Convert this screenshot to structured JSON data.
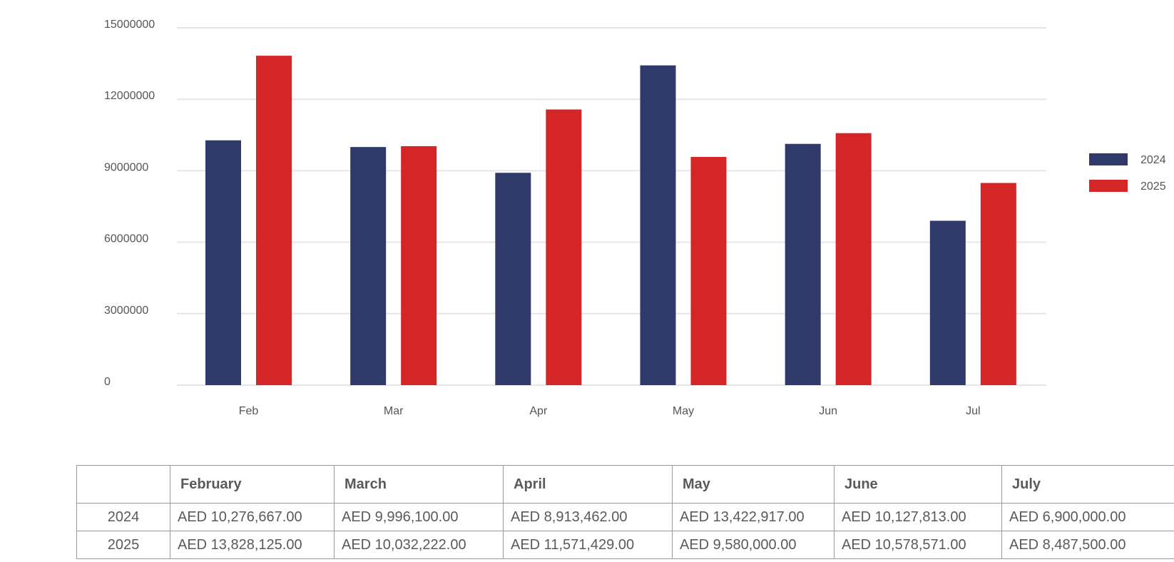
{
  "chart_data": {
    "type": "bar",
    "categories": [
      "Feb",
      "Mar",
      "Apr",
      "May",
      "Jun",
      "Jul"
    ],
    "series": [
      {
        "name": "2024",
        "color": "#2f3a6b",
        "values": [
          10276667,
          9996100,
          8913462,
          13422917,
          10127813,
          6900000
        ]
      },
      {
        "name": "2025",
        "color": "#d42626",
        "values": [
          13828125,
          10032222,
          11571429,
          9580000,
          10578571,
          8487500
        ]
      }
    ],
    "ylim": [
      0,
      15000000
    ],
    "yticks": [
      0,
      3000000,
      6000000,
      9000000,
      12000000,
      15000000
    ],
    "ytick_labels": [
      "0",
      "3000000",
      "6000000",
      "9000000",
      "12000000",
      "15000000"
    ],
    "grid": true,
    "legend": "right",
    "title": "",
    "xlabel": "",
    "ylabel": ""
  },
  "table": {
    "header": [
      "",
      "February",
      "March",
      "April",
      "May",
      "June",
      "July"
    ],
    "rows": [
      {
        "label": "2024",
        "cells": [
          "AED 10,276,667.00",
          "AED 9,996,100.00",
          "AED 8,913,462.00",
          "AED 13,422,917.00",
          "AED 10,127,813.00",
          "AED 6,900,000.00"
        ]
      },
      {
        "label": "2025",
        "cells": [
          "AED 13,828,125.00",
          "AED 10,032,222.00",
          "AED 11,571,429.00",
          "AED 9,580,000.00",
          "AED 10,578,571.00",
          "AED 8,487,500.00"
        ]
      }
    ]
  }
}
